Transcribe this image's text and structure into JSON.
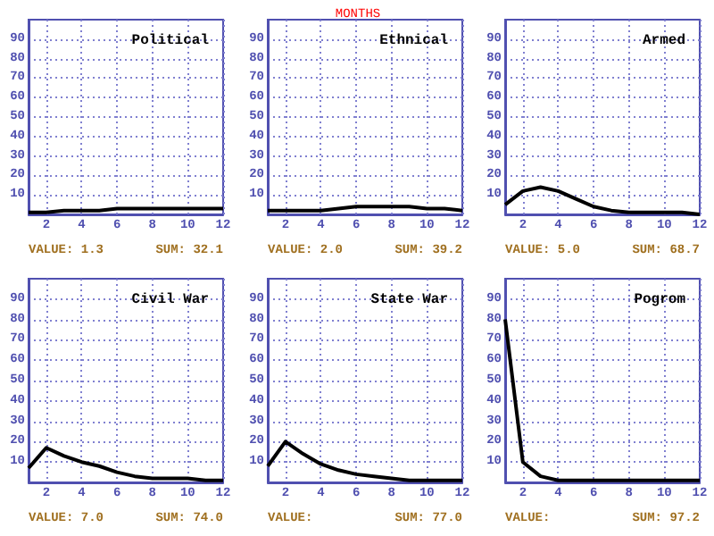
{
  "chart_data": [
    {
      "type": "line",
      "title": "Political",
      "x": [
        1,
        2,
        3,
        4,
        5,
        6,
        7,
        8,
        9,
        10,
        11,
        12
      ],
      "series": [
        {
          "color": "#000000",
          "values": [
            1,
            1,
            2,
            2,
            2,
            3,
            3,
            3,
            3,
            3,
            3,
            3
          ]
        }
      ],
      "xlim": [
        1,
        12
      ],
      "xticks": [
        2,
        4,
        6,
        8,
        10,
        12
      ],
      "ylim": [
        0,
        100
      ],
      "yticks": [
        10,
        20,
        30,
        40,
        50,
        60,
        70,
        80,
        90
      ],
      "grid": true,
      "marker": "none",
      "line_style": "solid",
      "annotations": [
        "VALUE: 1.3",
        "SUM: 32.1"
      ]
    },
    {
      "type": "line",
      "title": "Ethnical",
      "subtitle": "MONTHS",
      "x": [
        1,
        2,
        3,
        4,
        5,
        6,
        7,
        8,
        9,
        10,
        11,
        12
      ],
      "series": [
        {
          "color": "#000000",
          "values": [
            2,
            2,
            2,
            2,
            3,
            4,
            4,
            4,
            4,
            3,
            3,
            2
          ]
        }
      ],
      "xlim": [
        1,
        12
      ],
      "xticks": [
        2,
        4,
        6,
        8,
        10,
        12
      ],
      "ylim": [
        0,
        100
      ],
      "yticks": [
        10,
        20,
        30,
        40,
        50,
        60,
        70,
        80,
        90
      ],
      "grid": true,
      "marker": "none",
      "line_style": "solid",
      "annotations": [
        "VALUE: 2.0",
        "SUM: 39.2"
      ]
    },
    {
      "type": "line",
      "title": "Armed",
      "x": [
        1,
        2,
        3,
        4,
        5,
        6,
        7,
        8,
        9,
        10,
        11,
        12
      ],
      "series": [
        {
          "color": "#000000",
          "values": [
            5,
            12,
            14,
            12,
            8,
            4,
            2,
            1,
            1,
            1,
            1,
            0
          ]
        }
      ],
      "xlim": [
        1,
        12
      ],
      "xticks": [
        2,
        4,
        6,
        8,
        10,
        12
      ],
      "ylim": [
        0,
        100
      ],
      "yticks": [
        10,
        20,
        30,
        40,
        50,
        60,
        70,
        80,
        90
      ],
      "grid": true,
      "marker": "none",
      "line_style": "solid",
      "annotations": [
        "VALUE: 5.0",
        "SUM: 68.7"
      ]
    },
    {
      "type": "line",
      "title": "Civil War",
      "x": [
        1,
        2,
        3,
        4,
        5,
        6,
        7,
        8,
        9,
        10,
        11,
        12
      ],
      "series": [
        {
          "color": "#000000",
          "values": [
            7,
            17,
            13,
            10,
            8,
            5,
            3,
            2,
            2,
            2,
            1,
            1
          ]
        }
      ],
      "xlim": [
        1,
        12
      ],
      "xticks": [
        2,
        4,
        6,
        8,
        10,
        12
      ],
      "ylim": [
        0,
        100
      ],
      "yticks": [
        10,
        20,
        30,
        40,
        50,
        60,
        70,
        80,
        90
      ],
      "grid": true,
      "marker": "none",
      "line_style": "solid",
      "annotations": [
        "VALUE: 7.0",
        "SUM: 74.0"
      ]
    },
    {
      "type": "line",
      "title": "State War",
      "x": [
        1,
        2,
        3,
        4,
        5,
        6,
        7,
        8,
        9,
        10,
        11,
        12
      ],
      "series": [
        {
          "color": "#000000",
          "values": [
            8,
            20,
            14,
            9,
            6,
            4,
            3,
            2,
            1,
            1,
            1,
            1
          ]
        }
      ],
      "xlim": [
        1,
        12
      ],
      "xticks": [
        2,
        4,
        6,
        8,
        10,
        12
      ],
      "ylim": [
        0,
        100
      ],
      "yticks": [
        10,
        20,
        30,
        40,
        50,
        60,
        70,
        80,
        90
      ],
      "grid": true,
      "marker": "none",
      "line_style": "solid",
      "annotations": [
        "VALUE:",
        "SUM: 77.0"
      ]
    },
    {
      "type": "line",
      "title": "Pogrom",
      "x": [
        1,
        2,
        3,
        4,
        5,
        6,
        7,
        8,
        9,
        10,
        11,
        12
      ],
      "series": [
        {
          "color": "#000000",
          "values": [
            80,
            10,
            3,
            1,
            1,
            1,
            1,
            1,
            1,
            1,
            1,
            1
          ]
        }
      ],
      "xlim": [
        1,
        12
      ],
      "xticks": [
        2,
        4,
        6,
        8,
        10,
        12
      ],
      "ylim": [
        0,
        100
      ],
      "yticks": [
        10,
        20,
        30,
        40,
        50,
        60,
        70,
        80,
        90
      ],
      "grid": true,
      "marker": "none",
      "line_style": "solid",
      "annotations": [
        "VALUE:",
        "SUM: 97.2"
      ]
    }
  ]
}
